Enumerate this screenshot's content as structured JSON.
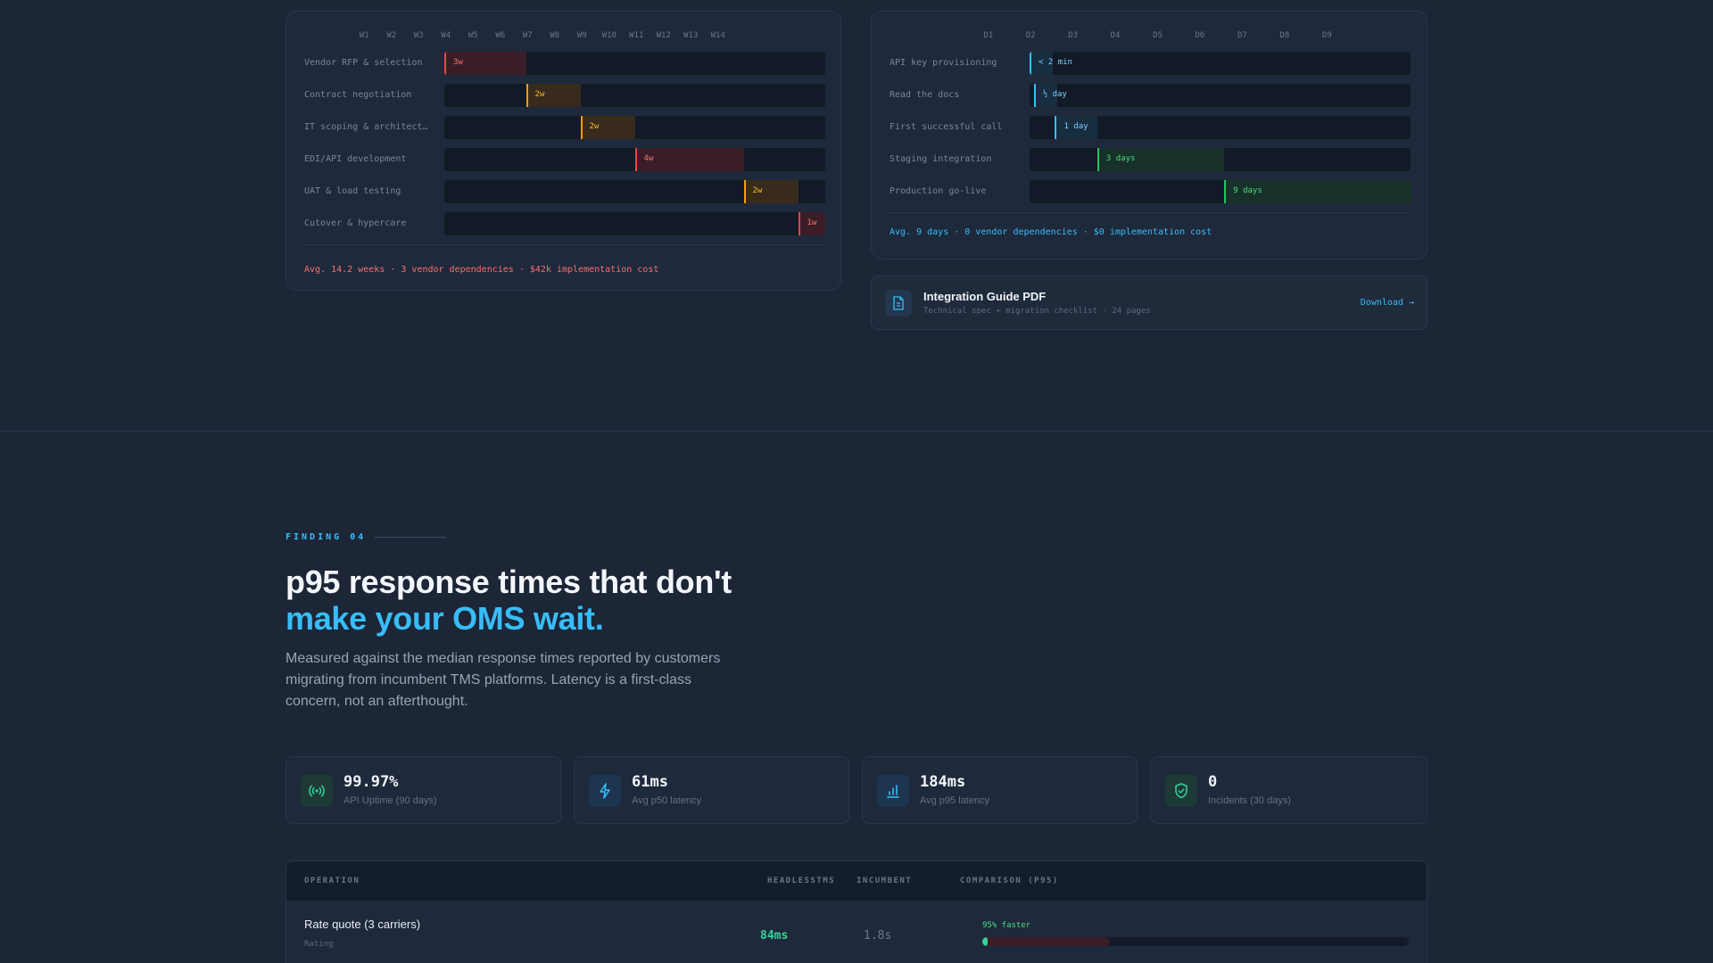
{
  "legacy_timeline": {
    "week_labels": [
      "W1",
      "W2",
      "W3",
      "W4",
      "W5",
      "W6",
      "W7",
      "W8",
      "W9",
      "W10",
      "W11",
      "W12",
      "W13",
      "W14"
    ],
    "total_weeks": 14,
    "rows": [
      {
        "label": "Vendor RFP & selection",
        "start_week": 0,
        "duration_weeks": 3,
        "bar_label": "3w",
        "tone": "red"
      },
      {
        "label": "Contract negotiation",
        "start_week": 3,
        "duration_weeks": 2,
        "bar_label": "2w",
        "tone": "amber"
      },
      {
        "label": "IT scoping & architect…",
        "start_week": 5,
        "duration_weeks": 2,
        "bar_label": "2w",
        "tone": "amber"
      },
      {
        "label": "EDI/API development",
        "start_week": 7,
        "duration_weeks": 4,
        "bar_label": "4w",
        "tone": "red"
      },
      {
        "label": "UAT & load testing",
        "start_week": 11,
        "duration_weeks": 2,
        "bar_label": "2w",
        "tone": "amber"
      },
      {
        "label": "Cutover & hypercare",
        "start_week": 13,
        "duration_weeks": 1,
        "bar_label": "1w",
        "tone": "red"
      }
    ],
    "summary": "Avg. 14.2 weeks · 3 vendor dependencies · $42k implementation cost"
  },
  "headless_timeline": {
    "day_labels": [
      "D1",
      "D2",
      "D3",
      "D4",
      "D5",
      "D6",
      "D7",
      "D8",
      "D9"
    ],
    "total_days": 9,
    "rows": [
      {
        "label": "API key provisioning",
        "start_day": 0,
        "duration_days": 0.3,
        "bar_label": "< 2 min",
        "tone": "blue"
      },
      {
        "label": "Read the docs",
        "start_day": 0.1,
        "duration_days": 0.5,
        "bar_label": "½ day",
        "tone": "blue"
      },
      {
        "label": "First successful call",
        "start_day": 0.6,
        "duration_days": 1,
        "bar_label": "1 day",
        "tone": "blue"
      },
      {
        "label": "Staging integration",
        "start_day": 1.6,
        "duration_days": 3,
        "bar_label": "3 days",
        "tone": "green"
      },
      {
        "label": "Production go-live",
        "start_day": 4.6,
        "duration_days": 4.4,
        "bar_label": "9 days",
        "tone": "green"
      }
    ],
    "summary": "Avg. 9 days · 0 vendor dependencies · $0 implementation cost"
  },
  "guide": {
    "title": "Integration Guide PDF",
    "subtitle": "Technical spec + migration checklist · 24 pages",
    "link": "Download →",
    "icon": "document-icon"
  },
  "finding": {
    "eyebrow": "FINDING 04",
    "headline_line1": "p95 response times that don't",
    "headline_line2": "make your OMS wait.",
    "lede": "Measured against the median response times reported by customers migrating from incumbent TMS platforms. Latency is a first-class concern, not an afterthought."
  },
  "stats": [
    {
      "value": "99.97%",
      "label": "API Uptime (90 days)",
      "icon": "signal-icon",
      "color": "#34d399"
    },
    {
      "value": "61ms",
      "label": "Avg p50 latency",
      "icon": "bolt-icon",
      "color": "#38bdf8"
    },
    {
      "value": "184ms",
      "label": "Avg p95 latency",
      "icon": "bar-chart-icon",
      "color": "#38bdf8"
    },
    {
      "value": "0",
      "label": "Incidents (30 days)",
      "icon": "shield-check-icon",
      "color": "#34d399"
    }
  ],
  "table": {
    "headers": [
      "OPERATION",
      "HEADLESSTMS",
      "INCUMBENT",
      "COMPARISON (P95)"
    ],
    "rows": [
      {
        "name": "Rate quote (3 carriers)",
        "category": "Rating",
        "ours": "84ms",
        "incumbent": "1.8s",
        "comparison_label": "95% faster",
        "ours_fraction": 0.013,
        "incumbent_fraction": 0.3
      }
    ]
  },
  "colors": {
    "accent": "#38bdf8",
    "success": "#34d399",
    "danger": "#ef4444",
    "warning": "#f59e0b"
  }
}
